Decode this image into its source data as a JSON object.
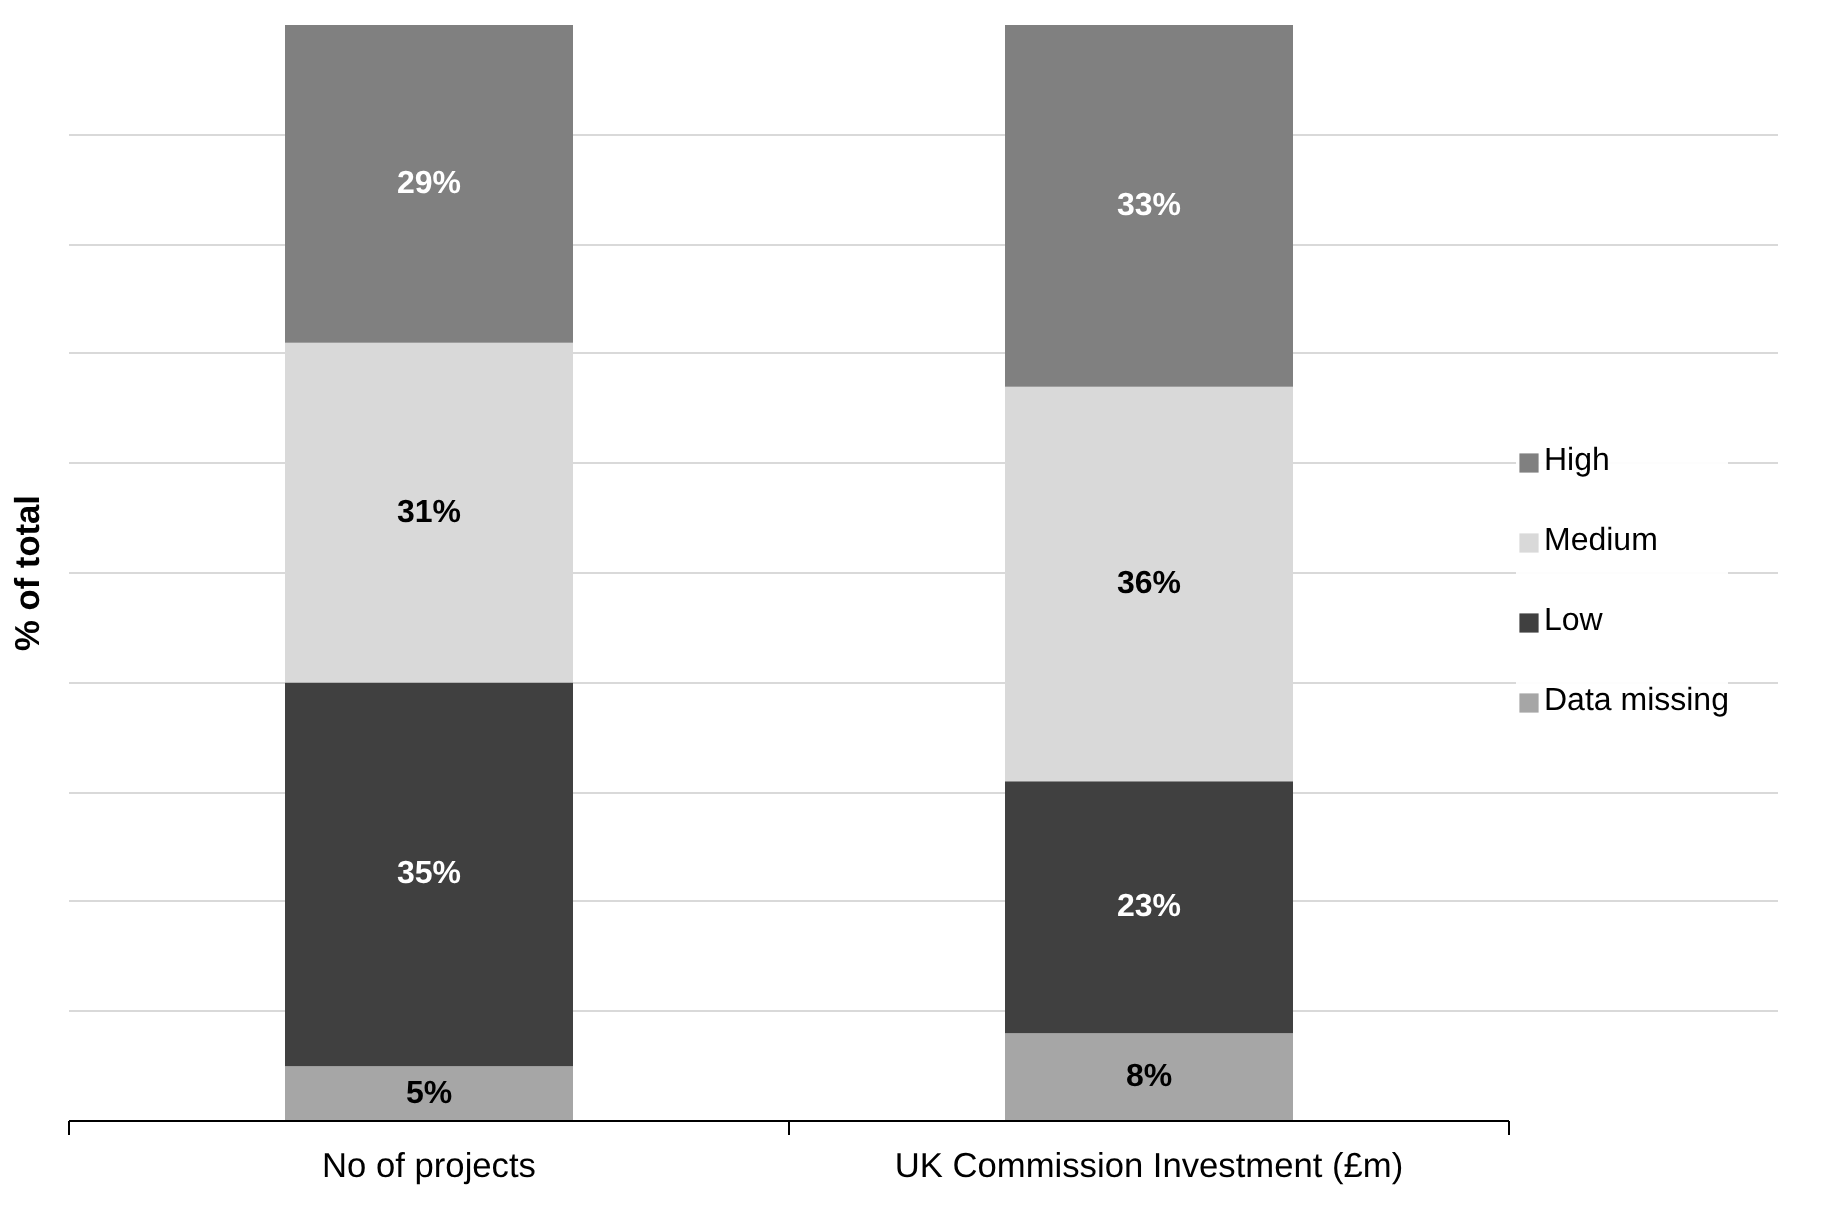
{
  "chart_data": {
    "type": "bar",
    "stacked": true,
    "ylabel": "% of total",
    "categories": [
      "No of projects",
      "UK Commission Investment (£m)"
    ],
    "series": [
      {
        "name": "Data missing",
        "color": "#a6a6a6",
        "values": [
          5,
          8
        ],
        "value_labels": [
          "5%",
          "8%"
        ]
      },
      {
        "name": "Low",
        "color": "#404040",
        "values": [
          35,
          23
        ],
        "value_labels": [
          "35%",
          "23%"
        ]
      },
      {
        "name": "Medium",
        "color": "#d9d9d9",
        "values": [
          31,
          36
        ],
        "value_labels": [
          "31%",
          "36%"
        ]
      },
      {
        "name": "High",
        "color": "#808080",
        "values": [
          29,
          33
        ],
        "value_labels": [
          "29%",
          "33%"
        ]
      }
    ],
    "tick_labels": "x",
    "grid": "y",
    "legend": "right"
  }
}
